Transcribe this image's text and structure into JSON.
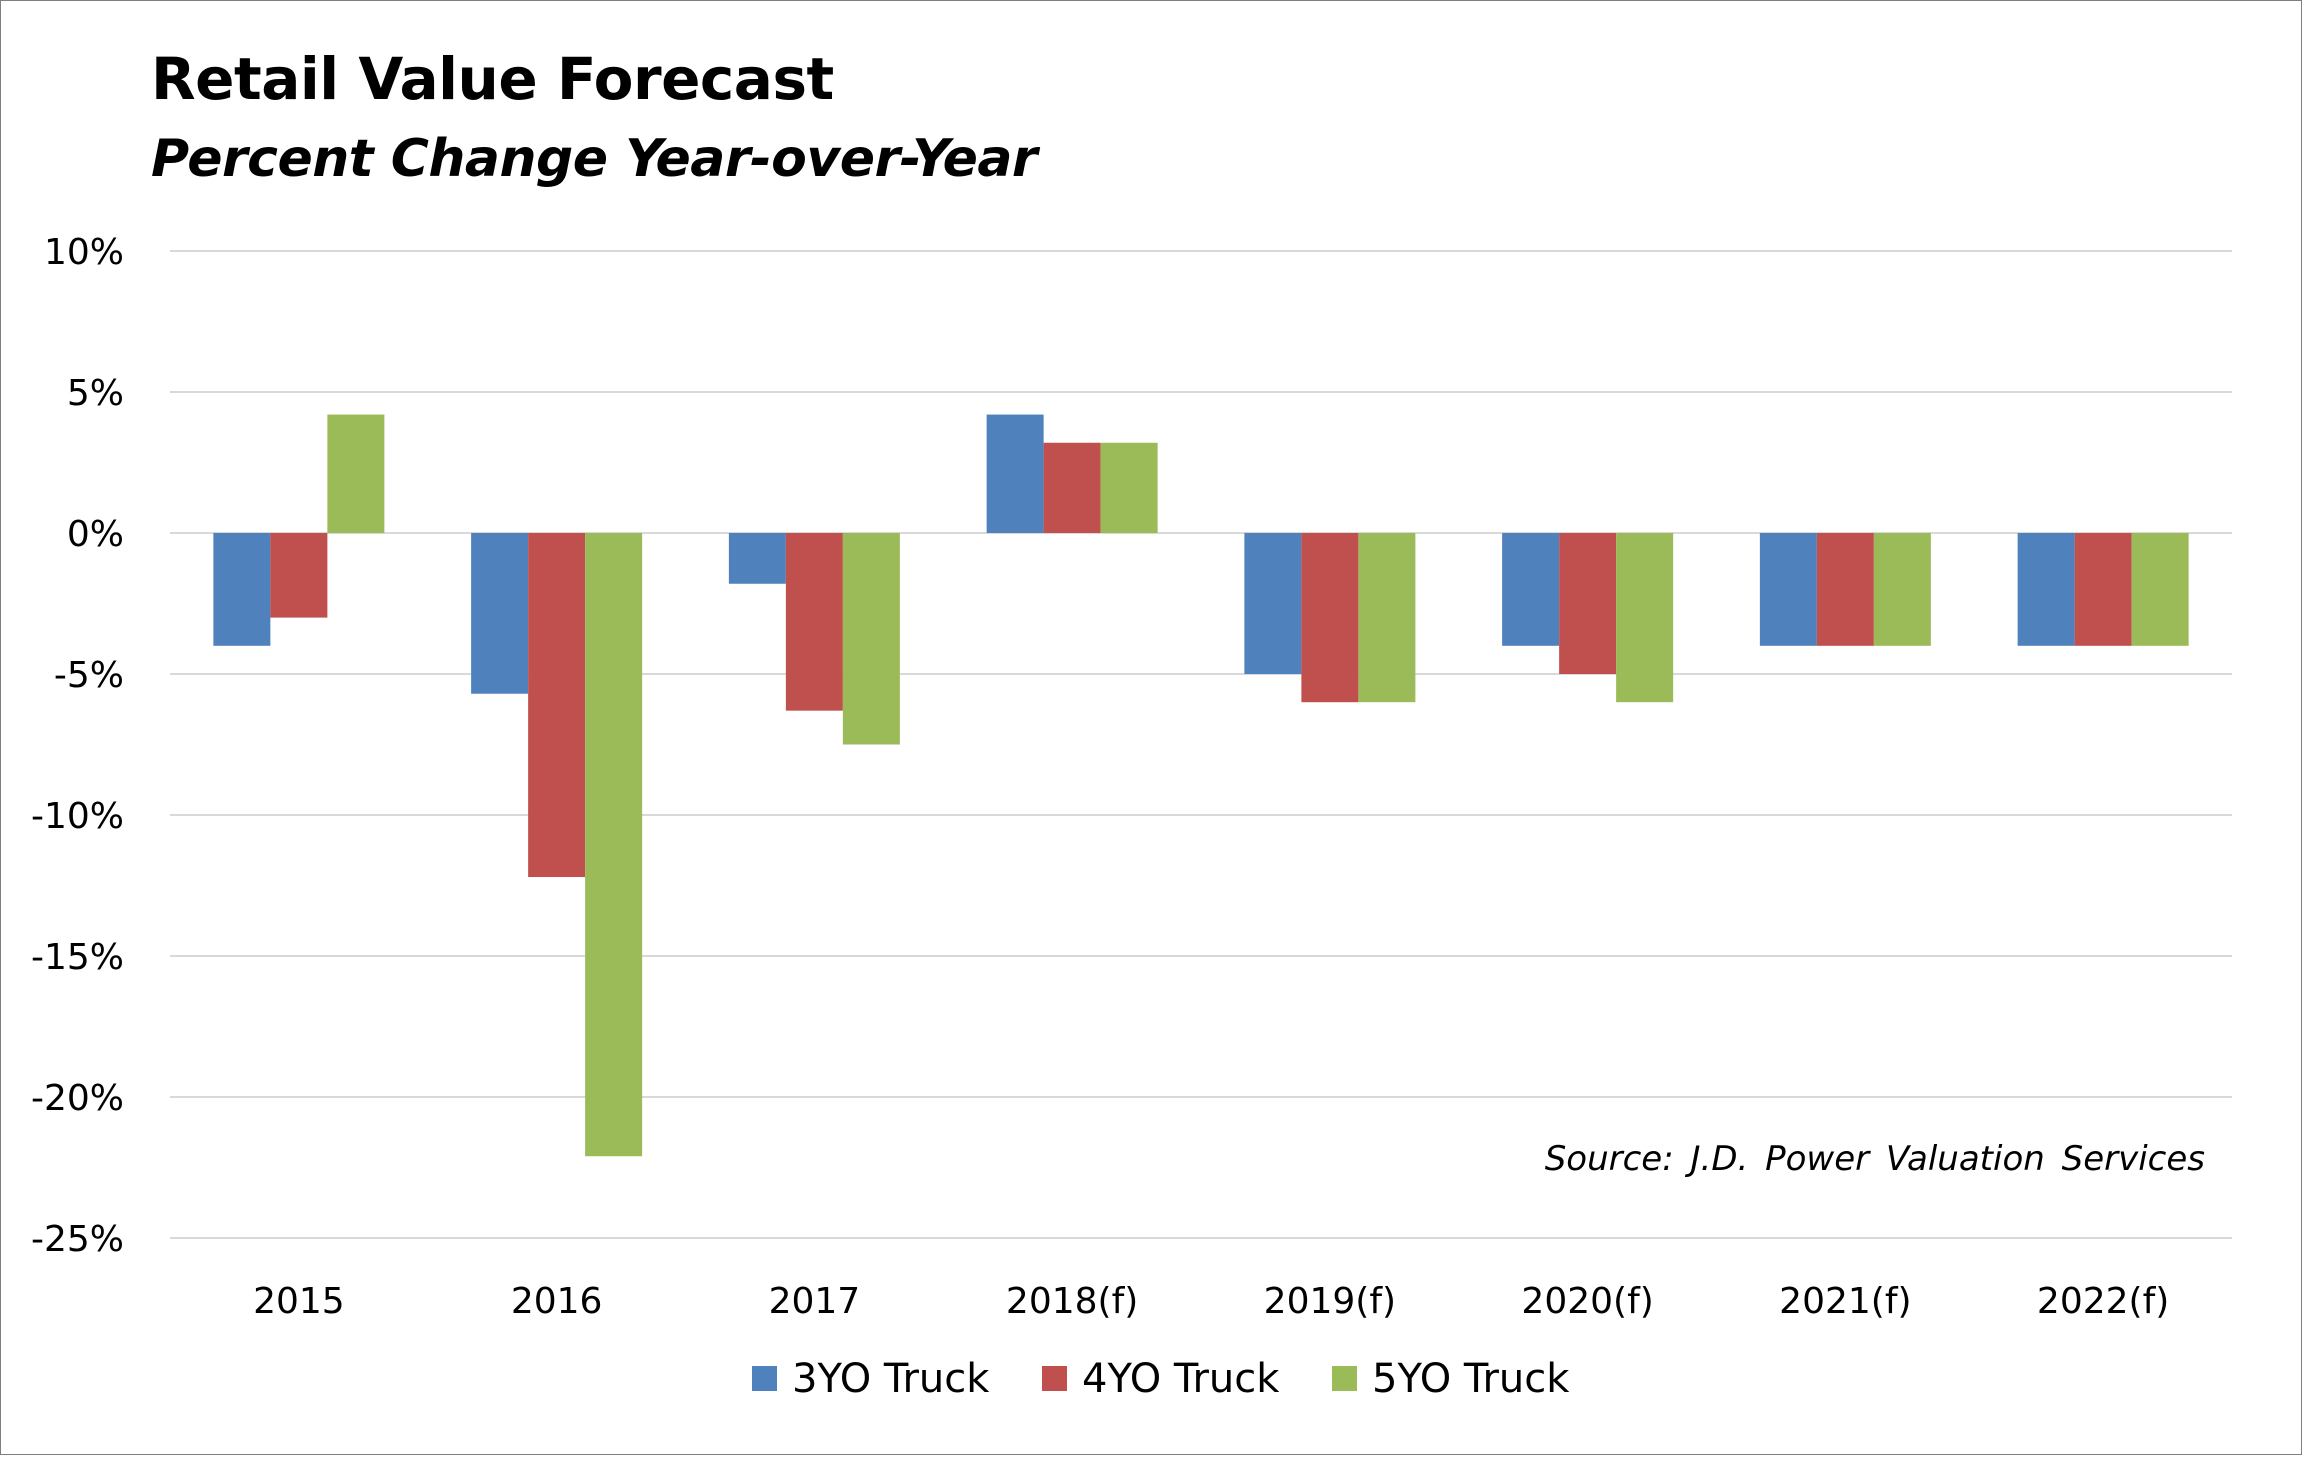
{
  "chart_data": {
    "type": "bar",
    "title": "Retail Value Forecast",
    "subtitle": "Percent Change Year-over-Year",
    "categories": [
      "2015",
      "2016",
      "2017",
      "2018(f)",
      "2019(f)",
      "2020(f)",
      "2021(f)",
      "2022(f)"
    ],
    "series": [
      {
        "name": "3YO Truck",
        "color": "#4F81BD",
        "values": [
          -4,
          -5.7,
          -1.8,
          4.2,
          -5,
          -4,
          -4,
          -4
        ]
      },
      {
        "name": "4YO Truck",
        "color": "#C0504D",
        "values": [
          -3,
          -12.2,
          -6.3,
          3.2,
          -6,
          -5,
          -4,
          -4
        ]
      },
      {
        "name": "5YO Truck",
        "color": "#9BBB59",
        "values": [
          4.2,
          -22.1,
          -7.5,
          3.2,
          -6,
          -6,
          -4,
          -4
        ]
      }
    ],
    "ylim": [
      -25,
      10
    ],
    "yticks": [
      10,
      5,
      0,
      -5,
      -10,
      -15,
      -20,
      -25
    ],
    "ytick_labels": [
      "10%",
      "5%",
      "0%",
      "-5%",
      "-10%",
      "-15%",
      "-20%",
      "-25%"
    ],
    "grid": true,
    "legend_position": "bottom",
    "annotation": "Source: J.D. Power Valuation Services"
  }
}
